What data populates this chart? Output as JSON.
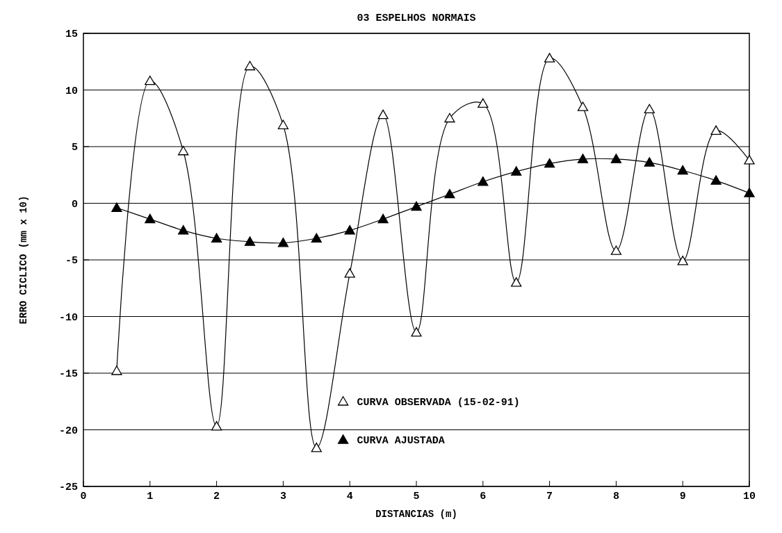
{
  "chart_data": {
    "type": "line",
    "title": "03 ESPELHOS NORMAIS",
    "xlabel": "DISTANCIAS   (m)",
    "ylabel": "ERRO CICLICO   (mm x 10)",
    "x": [
      0.5,
      1,
      1.5,
      2,
      2.5,
      3,
      3.5,
      4,
      4.5,
      5,
      5.5,
      6,
      6.5,
      7,
      7.5,
      8,
      8.5,
      9,
      9.5,
      10
    ],
    "series": [
      {
        "name": "CURVA OBSERVADA (15-02-91)",
        "color": "#000000",
        "values": [
          -14.8,
          10.8,
          4.6,
          -19.7,
          12.1,
          6.9,
          -21.6,
          -6.2,
          7.8,
          -11.4,
          7.5,
          8.8,
          -7.0,
          12.8,
          8.5,
          -4.2,
          8.3,
          -5.1,
          6.4,
          3.8
        ]
      },
      {
        "name": "CURVA AJUSTADA",
        "color": "#000000",
        "values": [
          -0.4,
          -1.4,
          -2.4,
          -3.1,
          -3.4,
          -3.5,
          -3.1,
          -2.4,
          -1.4,
          -0.3,
          0.8,
          1.9,
          2.8,
          3.5,
          3.9,
          3.9,
          3.6,
          2.9,
          2.0,
          0.9
        ]
      }
    ],
    "xlim": [
      0,
      10
    ],
    "xticks": [
      0,
      1,
      2,
      3,
      4,
      5,
      6,
      7,
      8,
      9,
      10
    ],
    "ylim": [
      -25,
      15
    ],
    "yticks": [
      -25,
      -20,
      -15,
      -10,
      -5,
      0,
      5,
      10,
      15
    ],
    "grid": "y",
    "legend": "bottom",
    "marker": "triangle",
    "line_style": "solid"
  }
}
